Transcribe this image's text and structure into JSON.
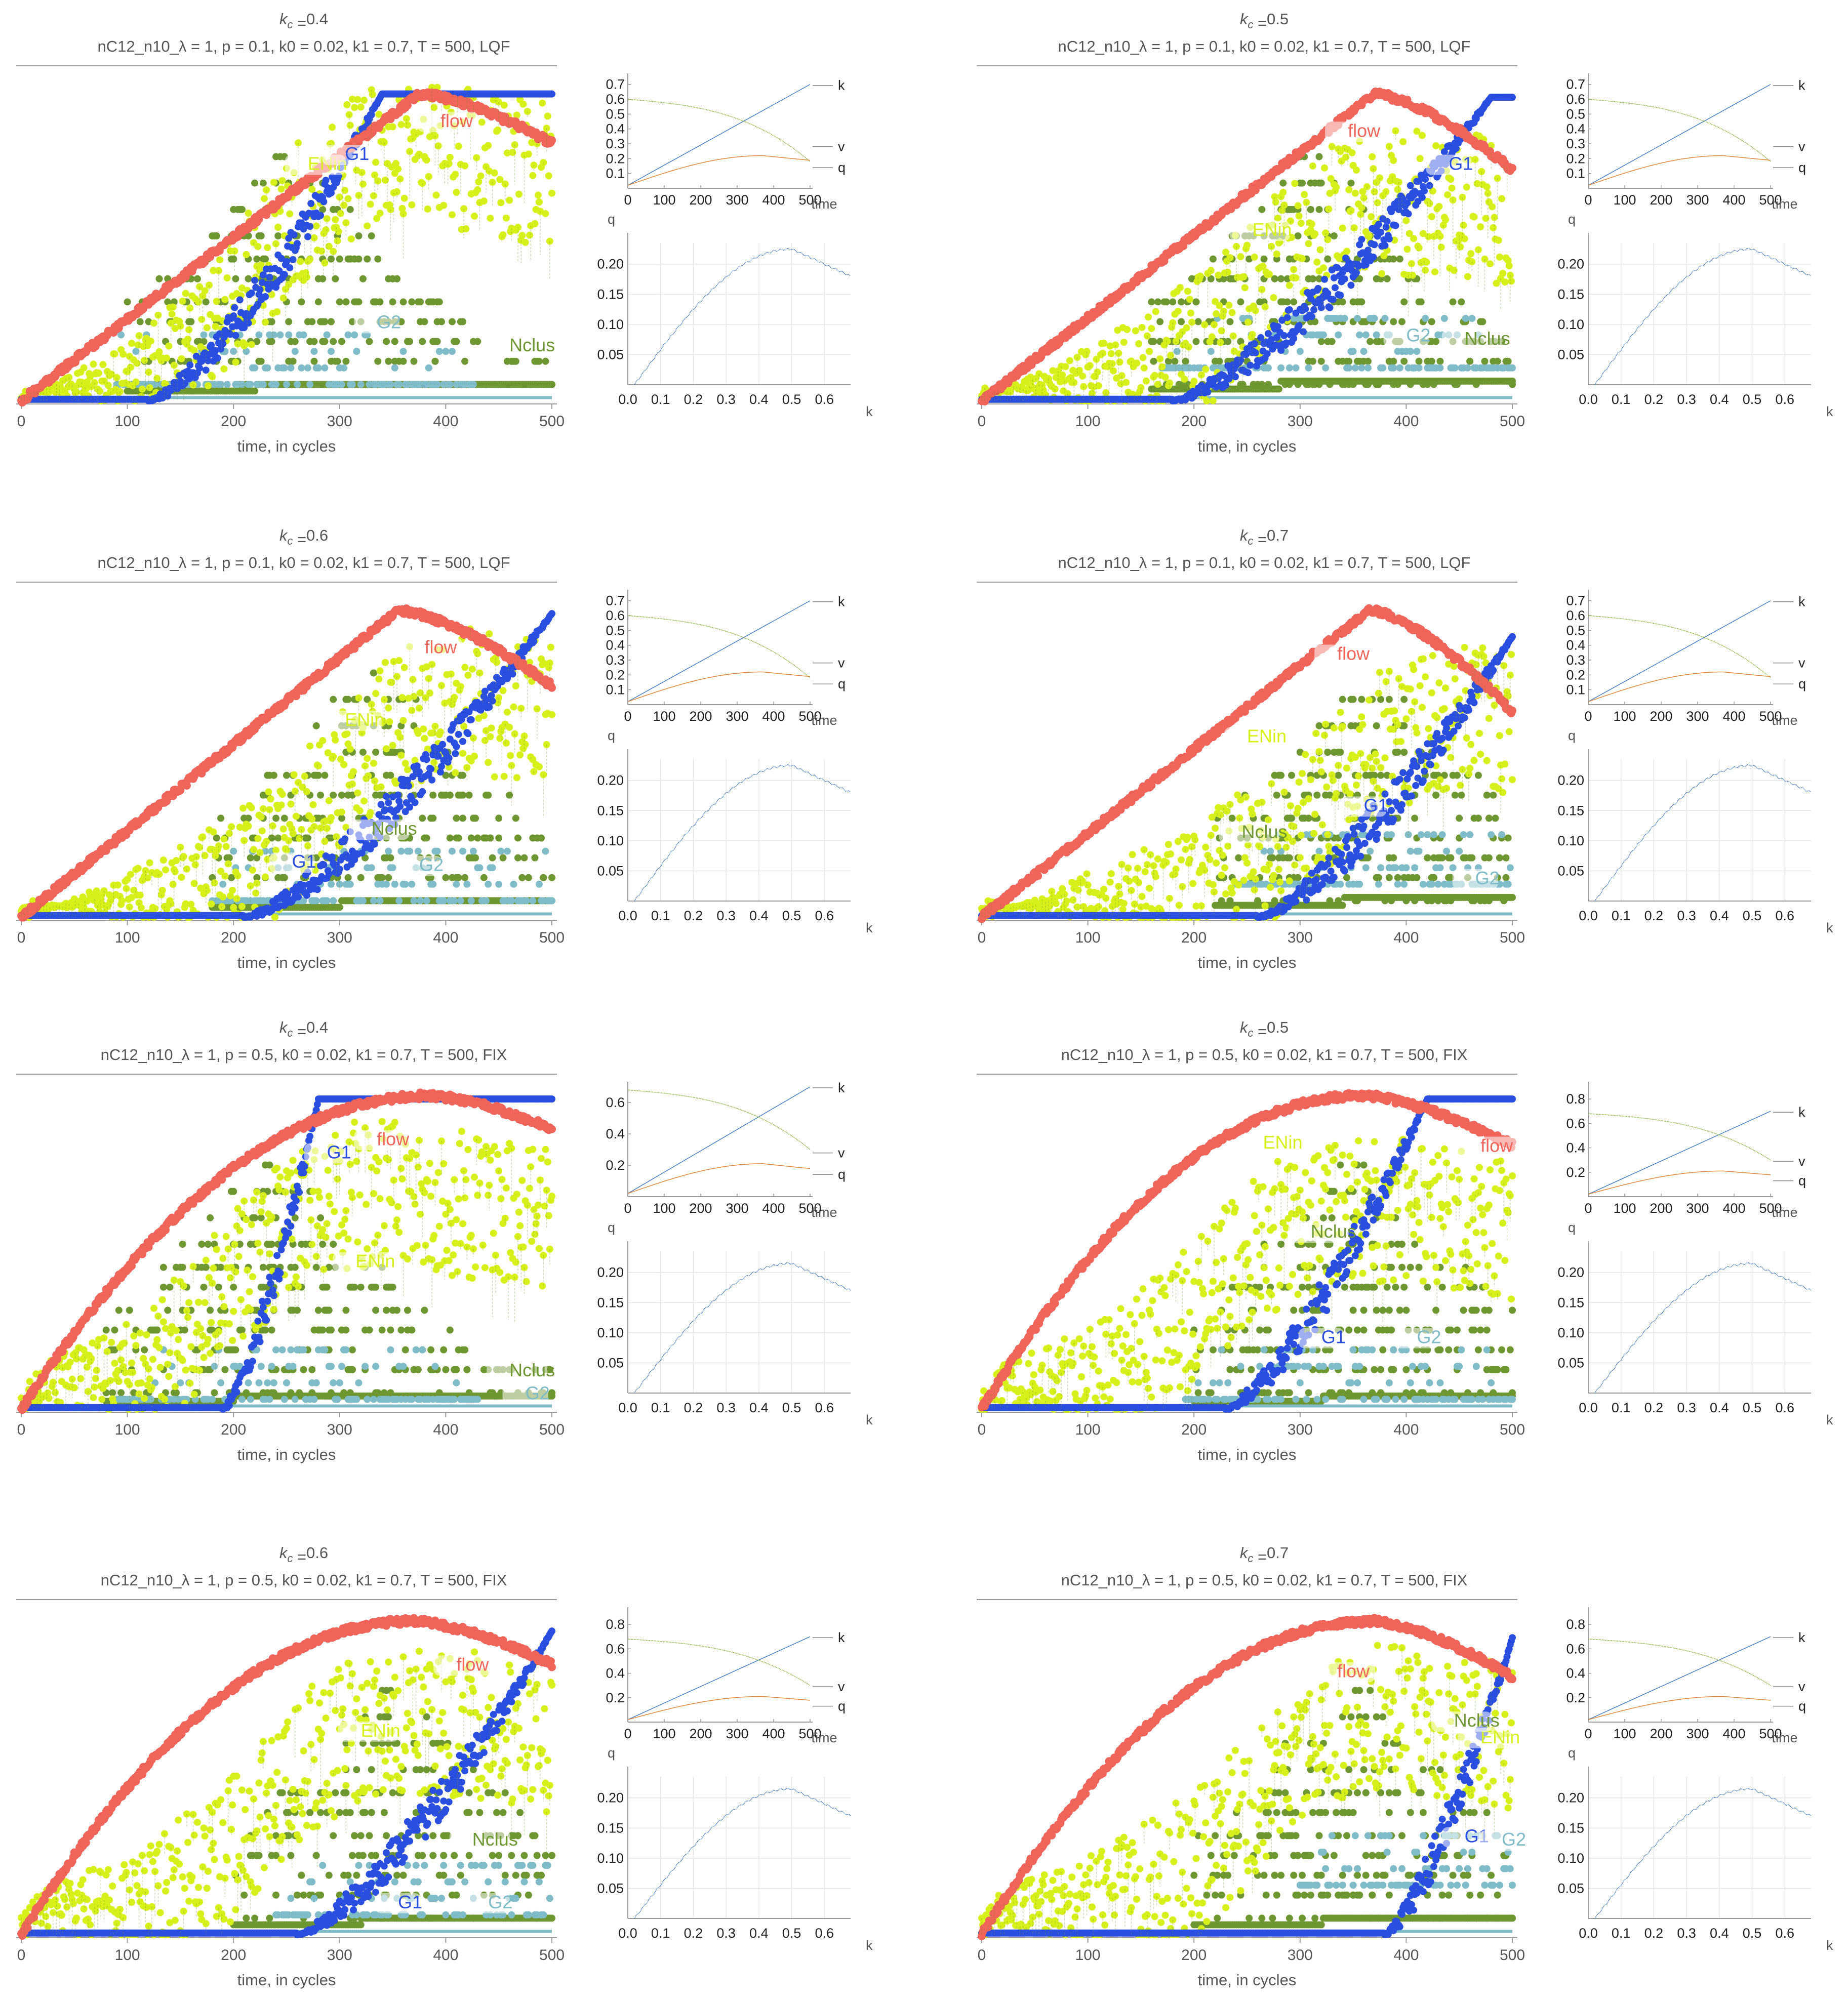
{
  "figure": {
    "x_axis_label": "time, in cycles",
    "annotation_labels": [
      "flow",
      "ENin",
      "G1",
      "G2",
      "Nclus"
    ],
    "colors": {
      "flow": "#f0645a",
      "ENin": "#d8f01a",
      "G1": "#2a4fe0",
      "G2": "#7fbcc8",
      "Nclus": "#6e9631",
      "k_line": "#4a7fbf",
      "v_line": "#8fb84a",
      "q_line": "#e0883a",
      "fd_line": "#4a7fbf",
      "axis": "#9a9a9a",
      "grid": "#e6e6e6"
    }
  },
  "chart_data": [
    {
      "type": "scatter",
      "title_kc": "0.4",
      "subtitle": "nC12_n10_λ = 1, p = 0.1, k0 = 0.02, k1 = 0.7, T = 500, LQF",
      "xlabel": "time, in cycles",
      "xlim": [
        0,
        500
      ],
      "xticks": [
        0,
        100,
        200,
        300,
        400,
        500
      ],
      "flow": {
        "peak_t": 375,
        "peak": 0.93,
        "end": 0.78,
        "shape": "lqf"
      },
      "ENin": {
        "start": 110,
        "mid": 230,
        "end": 460,
        "level": 0.7
      },
      "G1": {
        "start": 120,
        "end": 340,
        "plateau": 0.93
      },
      "G2": {
        "center": 250,
        "level": 0.05
      },
      "Nclus": {
        "start": 100,
        "level": 0.05
      },
      "annotations": [
        {
          "label": "flow",
          "t": 395,
          "y": 0.83
        },
        {
          "label": "ENin",
          "t": 270,
          "y": 0.7
        },
        {
          "label": "G1",
          "t": 305,
          "y": 0.73
        },
        {
          "label": "G2",
          "t": 335,
          "y": 0.22
        },
        {
          "label": "Nclus",
          "t": 460,
          "y": 0.15
        }
      ],
      "side_time": {
        "yticks": [
          0.1,
          0.2,
          0.3,
          0.4,
          0.5,
          0.6,
          0.7
        ],
        "xticks": [
          0,
          100,
          200,
          300,
          400,
          500
        ],
        "xlabel": "time",
        "legend": [
          "k",
          "v",
          "q"
        ],
        "k_end": 0.7,
        "v_start": 0.6,
        "v_end": 0.18,
        "q_peak": 0.22
      },
      "side_fd": {
        "ylabel": "q",
        "xlabel": "k",
        "yticks": [
          0.05,
          0.1,
          0.15,
          0.2
        ],
        "yticklabels": [
          "0.05",
          "0.10",
          "0.15",
          "0.20"
        ],
        "xticks": [
          0.0,
          0.1,
          0.2,
          0.3,
          0.4,
          0.5,
          0.6
        ],
        "xticklabels": [
          "0.0",
          "0.1",
          "0.2",
          "0.3",
          "0.4",
          "0.5",
          "0.6"
        ],
        "q_peak": 0.225,
        "k_peak": 0.5
      }
    },
    {
      "type": "scatter",
      "title_kc": "0.5",
      "subtitle": "nC12_n10_λ = 1, p = 0.1, k0 = 0.02, k1 = 0.7, T = 500, LQF",
      "xlabel": "time, in cycles",
      "xlim": [
        0,
        500
      ],
      "xticks": [
        0,
        100,
        200,
        300,
        400,
        500
      ],
      "flow": {
        "peak_t": 370,
        "peak": 0.93,
        "end": 0.7,
        "shape": "lqf"
      },
      "ENin": {
        "start": 120,
        "mid": 260,
        "end": 500,
        "level": 0.55
      },
      "G1": {
        "start": 180,
        "end": 480,
        "plateau": 0.92
      },
      "G2": {
        "center": 330,
        "level": 0.1
      },
      "Nclus": {
        "start": 160,
        "level": 0.06
      },
      "annotations": [
        {
          "label": "flow",
          "t": 345,
          "y": 0.8
        },
        {
          "label": "ENin",
          "t": 255,
          "y": 0.5
        },
        {
          "label": "G1",
          "t": 440,
          "y": 0.7
        },
        {
          "label": "G2",
          "t": 400,
          "y": 0.18
        },
        {
          "label": "Nclus",
          "t": 455,
          "y": 0.17
        }
      ],
      "side_time": {
        "yticks": [
          0.1,
          0.2,
          0.3,
          0.4,
          0.5,
          0.6,
          0.7
        ],
        "xticks": [
          0,
          100,
          200,
          300,
          400,
          500
        ],
        "xlabel": "time",
        "legend": [
          "k",
          "v",
          "q"
        ],
        "k_end": 0.7,
        "v_start": 0.6,
        "v_end": 0.18,
        "q_peak": 0.22
      },
      "side_fd": {
        "ylabel": "q",
        "xlabel": "k",
        "yticks": [
          0.05,
          0.1,
          0.15,
          0.2
        ],
        "yticklabels": [
          "0.05",
          "0.10",
          "0.15",
          "0.20"
        ],
        "xticks": [
          0.0,
          0.1,
          0.2,
          0.3,
          0.4,
          0.5,
          0.6
        ],
        "xticklabels": [
          "0.0",
          "0.1",
          "0.2",
          "0.3",
          "0.4",
          "0.5",
          "0.6"
        ],
        "q_peak": 0.225,
        "k_peak": 0.5
      }
    },
    {
      "type": "scatter",
      "title_kc": "0.6",
      "subtitle": "nC12_n10_λ = 1, p = 0.1, k0 = 0.02, k1 = 0.7, T = 500, LQF",
      "xlabel": "time, in cycles",
      "xlim": [
        0,
        500
      ],
      "xticks": [
        0,
        100,
        200,
        300,
        400,
        500
      ],
      "flow": {
        "peak_t": 355,
        "peak": 0.93,
        "end": 0.7,
        "shape": "lqf"
      },
      "ENin": {
        "start": 150,
        "mid": 290,
        "end": 500,
        "level": 0.6
      },
      "G1": {
        "start": 210,
        "end": 500,
        "plateau": 0.92
      },
      "G2": {
        "center": 340,
        "level": 0.05
      },
      "Nclus": {
        "start": 180,
        "level": 0.05
      },
      "annotations": [
        {
          "label": "flow",
          "t": 380,
          "y": 0.8
        },
        {
          "label": "ENin",
          "t": 305,
          "y": 0.58
        },
        {
          "label": "G1",
          "t": 255,
          "y": 0.15
        },
        {
          "label": "G2",
          "t": 375,
          "y": 0.14
        },
        {
          "label": "Nclus",
          "t": 330,
          "y": 0.25
        }
      ],
      "side_time": {
        "yticks": [
          0.1,
          0.2,
          0.3,
          0.4,
          0.5,
          0.6,
          0.7
        ],
        "xticks": [
          0,
          100,
          200,
          300,
          400,
          500
        ],
        "xlabel": "time",
        "legend": [
          "k",
          "v",
          "q"
        ],
        "k_end": 0.7,
        "v_start": 0.6,
        "v_end": 0.18,
        "q_peak": 0.22
      },
      "side_fd": {
        "ylabel": "q",
        "xlabel": "k",
        "yticks": [
          0.05,
          0.1,
          0.15,
          0.2
        ],
        "yticklabels": [
          "0.05",
          "0.10",
          "0.15",
          "0.20"
        ],
        "xticks": [
          0.0,
          0.1,
          0.2,
          0.3,
          0.4,
          0.5,
          0.6
        ],
        "xticklabels": [
          "0.0",
          "0.1",
          "0.2",
          "0.3",
          "0.4",
          "0.5",
          "0.6"
        ],
        "q_peak": 0.225,
        "k_peak": 0.5
      }
    },
    {
      "type": "scatter",
      "title_kc": "0.7",
      "subtitle": "nC12_n10_λ = 1, p = 0.1, k0 = 0.02, k1 = 0.7, T = 500, LQF",
      "xlabel": "time, in cycles",
      "xlim": [
        0,
        500
      ],
      "xticks": [
        0,
        100,
        200,
        300,
        400,
        500
      ],
      "flow": {
        "peak_t": 365,
        "peak": 0.93,
        "end": 0.62,
        "shape": "lqf"
      },
      "ENin": {
        "start": 150,
        "mid": 320,
        "end": 500,
        "level": 0.55
      },
      "G1": {
        "start": 260,
        "end": 500,
        "plateau": 0.85
      },
      "G2": {
        "center": 400,
        "level": 0.1
      },
      "Nclus": {
        "start": 220,
        "level": 0.06
      },
      "annotations": [
        {
          "label": "flow",
          "t": 335,
          "y": 0.78
        },
        {
          "label": "ENin",
          "t": 250,
          "y": 0.53
        },
        {
          "label": "G1",
          "t": 360,
          "y": 0.32
        },
        {
          "label": "G2",
          "t": 465,
          "y": 0.1
        },
        {
          "label": "Nclus",
          "t": 245,
          "y": 0.24
        }
      ],
      "side_time": {
        "yticks": [
          0.1,
          0.2,
          0.3,
          0.4,
          0.5,
          0.6,
          0.7
        ],
        "xticks": [
          0,
          100,
          200,
          300,
          400,
          500
        ],
        "xlabel": "time",
        "legend": [
          "k",
          "v",
          "q"
        ],
        "k_end": 0.7,
        "v_start": 0.6,
        "v_end": 0.18,
        "q_peak": 0.22
      },
      "side_fd": {
        "ylabel": "q",
        "xlabel": "k",
        "yticks": [
          0.05,
          0.1,
          0.15,
          0.2
        ],
        "yticklabels": [
          "0.05",
          "0.10",
          "0.15",
          "0.20"
        ],
        "xticks": [
          0.0,
          0.1,
          0.2,
          0.3,
          0.4,
          0.5,
          0.6
        ],
        "xticklabels": [
          "0.0",
          "0.1",
          "0.2",
          "0.3",
          "0.4",
          "0.5",
          "0.6"
        ],
        "q_peak": 0.225,
        "k_peak": 0.5
      }
    },
    {
      "type": "scatter",
      "title_kc": "0.4",
      "subtitle": "nC12_n10_λ = 1, p = 0.5, k0 = 0.02, k1 = 0.7, T = 500, FIX",
      "xlabel": "time, in cycles",
      "xlim": [
        0,
        500
      ],
      "xticks": [
        0,
        100,
        200,
        300,
        400,
        500
      ],
      "flow": {
        "peak_t": 385,
        "peak": 0.95,
        "end": 0.85,
        "shape": "fix"
      },
      "ENin": {
        "start": 20,
        "mid": 200,
        "end": 500,
        "level": 0.6
      },
      "G1": {
        "start": 190,
        "end": 280,
        "plateau": 0.94
      },
      "G2": {
        "center": 250,
        "level": 0.03
      },
      "Nclus": {
        "start": 80,
        "level": 0.04
      },
      "annotations": [
        {
          "label": "flow",
          "t": 335,
          "y": 0.8
        },
        {
          "label": "ENin",
          "t": 315,
          "y": 0.43
        },
        {
          "label": "G1",
          "t": 288,
          "y": 0.76
        },
        {
          "label": "G2",
          "t": 475,
          "y": 0.03
        },
        {
          "label": "Nclus",
          "t": 460,
          "y": 0.1
        }
      ],
      "side_time": {
        "yticks": [
          0.2,
          0.4,
          0.6
        ],
        "xticks": [
          0,
          100,
          200,
          300,
          400,
          500
        ],
        "xlabel": "time",
        "legend": [
          "k",
          "v",
          "q"
        ],
        "k_end": 0.7,
        "v_start": 0.68,
        "v_end": 0.3,
        "q_peak": 0.21
      },
      "side_fd": {
        "ylabel": "q",
        "xlabel": "k",
        "yticks": [
          0.05,
          0.1,
          0.15,
          0.2
        ],
        "yticklabels": [
          "0.05",
          "0.10",
          "0.15",
          "0.20"
        ],
        "xticks": [
          0.0,
          0.1,
          0.2,
          0.3,
          0.4,
          0.5,
          0.6
        ],
        "xticklabels": [
          "0.0",
          "0.1",
          "0.2",
          "0.3",
          "0.4",
          "0.5",
          "0.6"
        ],
        "q_peak": 0.215,
        "k_peak": 0.5
      }
    },
    {
      "type": "scatter",
      "title_kc": "0.5",
      "subtitle": "nC12_n10_λ = 1, p = 0.5, k0 = 0.02, k1 = 0.7, T = 500, FIX",
      "xlabel": "time, in cycles",
      "xlim": [
        0,
        500
      ],
      "xticks": [
        0,
        100,
        200,
        300,
        400,
        500
      ],
      "flow": {
        "peak_t": 360,
        "peak": 0.95,
        "end": 0.8,
        "shape": "fix"
      },
      "ENin": {
        "start": 20,
        "mid": 220,
        "end": 500,
        "level": 0.55
      },
      "G1": {
        "start": 230,
        "end": 420,
        "plateau": 0.94
      },
      "G2": {
        "center": 350,
        "level": 0.03
      },
      "Nclus": {
        "start": 200,
        "level": 0.04
      },
      "annotations": [
        {
          "label": "flow",
          "t": 470,
          "y": 0.78
        },
        {
          "label": "ENin",
          "t": 265,
          "y": 0.79
        },
        {
          "label": "G1",
          "t": 320,
          "y": 0.2
        },
        {
          "label": "G2",
          "t": 410,
          "y": 0.2
        },
        {
          "label": "Nclus",
          "t": 310,
          "y": 0.52
        }
      ],
      "side_time": {
        "yticks": [
          0.2,
          0.4,
          0.6,
          0.8
        ],
        "xticks": [
          0,
          100,
          200,
          300,
          400,
          500
        ],
        "xlabel": "time",
        "legend": [
          "k",
          "v",
          "q"
        ],
        "k_end": 0.7,
        "v_start": 0.68,
        "v_end": 0.3,
        "q_peak": 0.21
      },
      "side_fd": {
        "ylabel": "q",
        "xlabel": "k",
        "yticks": [
          0.05,
          0.1,
          0.15,
          0.2
        ],
        "yticklabels": [
          "0.05",
          "0.10",
          "0.15",
          "0.20"
        ],
        "xticks": [
          0.0,
          0.1,
          0.2,
          0.3,
          0.4,
          0.5,
          0.6
        ],
        "xticklabels": [
          "0.0",
          "0.1",
          "0.2",
          "0.3",
          "0.4",
          "0.5",
          "0.6"
        ],
        "q_peak": 0.215,
        "k_peak": 0.5
      }
    },
    {
      "type": "scatter",
      "title_kc": "0.6",
      "subtitle": "nC12_n10_λ = 1, p = 0.5, k0 = 0.02, k1 = 0.7, T = 500, FIX",
      "xlabel": "time, in cycles",
      "xlim": [
        0,
        500
      ],
      "xticks": [
        0,
        100,
        200,
        300,
        400,
        500
      ],
      "flow": {
        "peak_t": 370,
        "peak": 0.95,
        "end": 0.82,
        "shape": "fix"
      },
      "ENin": {
        "start": 20,
        "mid": 230,
        "end": 500,
        "level": 0.6
      },
      "G1": {
        "start": 260,
        "end": 500,
        "plateau": 0.92
      },
      "G2": {
        "center": 400,
        "level": 0.06
      },
      "Nclus": {
        "start": 200,
        "level": 0.05
      },
      "annotations": [
        {
          "label": "flow",
          "t": 410,
          "y": 0.8
        },
        {
          "label": "ENin",
          "t": 320,
          "y": 0.6
        },
        {
          "label": "G1",
          "t": 355,
          "y": 0.08
        },
        {
          "label": "G2",
          "t": 440,
          "y": 0.08
        },
        {
          "label": "Nclus",
          "t": 425,
          "y": 0.27
        }
      ],
      "side_time": {
        "yticks": [
          0.2,
          0.4,
          0.6,
          0.8
        ],
        "xticks": [
          0,
          100,
          200,
          300,
          400,
          500
        ],
        "xlabel": "time",
        "legend": [
          "k",
          "v",
          "q"
        ],
        "k_end": 0.7,
        "v_start": 0.68,
        "v_end": 0.3,
        "q_peak": 0.21
      },
      "side_fd": {
        "ylabel": "q",
        "xlabel": "k",
        "yticks": [
          0.05,
          0.1,
          0.15,
          0.2
        ],
        "yticklabels": [
          "0.05",
          "0.10",
          "0.15",
          "0.20"
        ],
        "xticks": [
          0.0,
          0.1,
          0.2,
          0.3,
          0.4,
          0.5,
          0.6
        ],
        "xticklabels": [
          "0.0",
          "0.1",
          "0.2",
          "0.3",
          "0.4",
          "0.5",
          "0.6"
        ],
        "q_peak": 0.215,
        "k_peak": 0.5
      }
    },
    {
      "type": "scatter",
      "title_kc": "0.7",
      "subtitle": "nC12_n10_λ = 1, p = 0.5, k0 = 0.02, k1 = 0.7, T = 500, FIX",
      "xlabel": "time, in cycles",
      "xlim": [
        0,
        500
      ],
      "xticks": [
        0,
        100,
        200,
        300,
        400,
        500
      ],
      "flow": {
        "peak_t": 370,
        "peak": 0.95,
        "end": 0.78,
        "shape": "fix"
      },
      "ENin": {
        "start": 20,
        "mid": 250,
        "end": 500,
        "level": 0.6
      },
      "G1": {
        "start": 380,
        "end": 500,
        "plateau": 0.9
      },
      "G2": {
        "center": 460,
        "level": 0.15
      },
      "Nclus": {
        "start": 200,
        "level": 0.05
      },
      "annotations": [
        {
          "label": "flow",
          "t": 335,
          "y": 0.78
        },
        {
          "label": "ENin",
          "t": 470,
          "y": 0.58
        },
        {
          "label": "G1",
          "t": 455,
          "y": 0.28
        },
        {
          "label": "G2",
          "t": 490,
          "y": 0.27
        },
        {
          "label": "Nclus",
          "t": 445,
          "y": 0.63
        }
      ],
      "side_time": {
        "yticks": [
          0.2,
          0.4,
          0.6,
          0.8
        ],
        "xticks": [
          0,
          100,
          200,
          300,
          400,
          500
        ],
        "xlabel": "time",
        "legend": [
          "k",
          "v",
          "q"
        ],
        "k_end": 0.7,
        "v_start": 0.68,
        "v_end": 0.3,
        "q_peak": 0.21
      },
      "side_fd": {
        "ylabel": "q",
        "xlabel": "k",
        "yticks": [
          0.05,
          0.1,
          0.15,
          0.2
        ],
        "yticklabels": [
          "0.05",
          "0.10",
          "0.15",
          "0.20"
        ],
        "xticks": [
          0.0,
          0.1,
          0.2,
          0.3,
          0.4,
          0.5,
          0.6
        ],
        "xticklabels": [
          "0.0",
          "0.1",
          "0.2",
          "0.3",
          "0.4",
          "0.5",
          "0.6"
        ],
        "q_peak": 0.215,
        "k_peak": 0.5
      }
    }
  ]
}
